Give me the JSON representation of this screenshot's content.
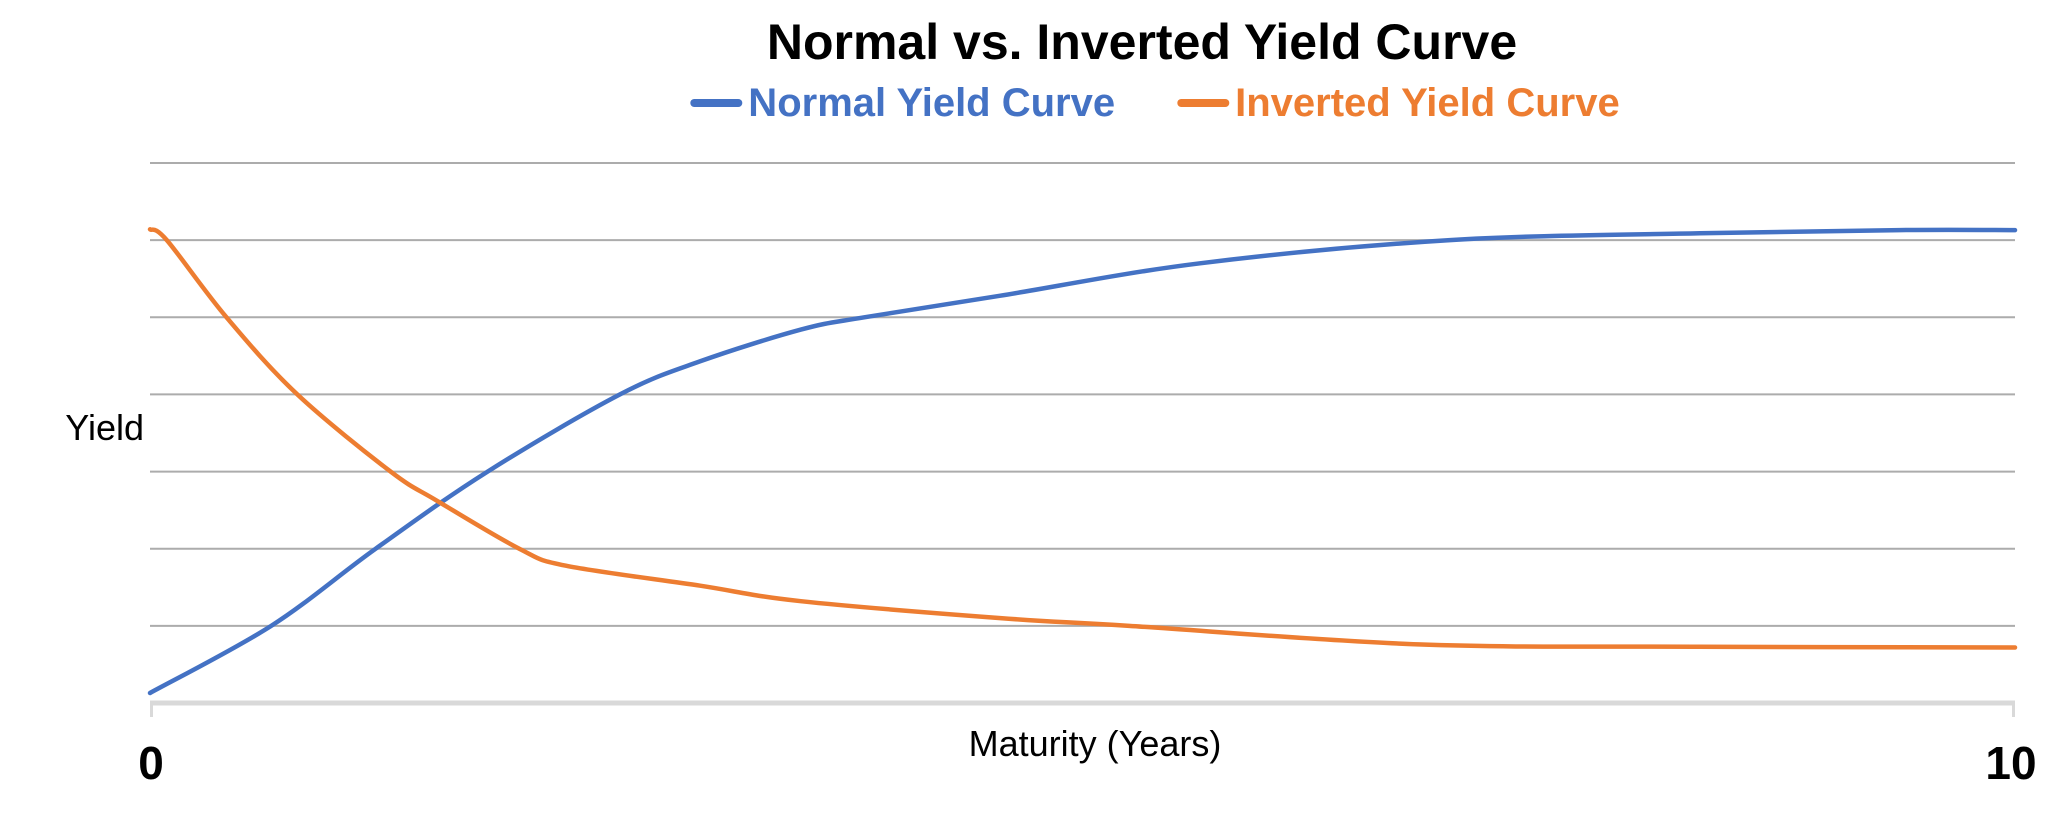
{
  "chart": {
    "title": "Normal vs. Inverted Yield Curve",
    "x_axis_label": "Maturity (Years)",
    "y_axis_label": "Yield",
    "x_tick_min": "0",
    "x_tick_max": "10",
    "colors": {
      "normal_line": "#4472C4",
      "inverted_line": "#ED7D31",
      "gridline": "#ACACAC",
      "axis_line": "#D9D9D9",
      "text": "#000000"
    }
  },
  "legend": [
    {
      "label": "Normal Yield Curve",
      "color": "#4472C4"
    },
    {
      "label": "Inverted Yield Curve",
      "color": "#ED7D31"
    }
  ],
  "chart_data": {
    "type": "line",
    "title": "Normal vs. Inverted Yield Curve",
    "xlabel": "Maturity (Years)",
    "ylabel": "Yield",
    "xlim": [
      0,
      10
    ],
    "x_ticks_labeled": [
      0,
      10
    ],
    "ylim": [
      0,
      7
    ],
    "y_tick_labels_shown": false,
    "y_units": "relative yield (7 unlabeled gridline intervals)",
    "grid": "horizontal",
    "legend_position": "top",
    "series": [
      {
        "name": "Normal Yield Curve",
        "color": "#4472C4",
        "points": [
          [
            0,
            0.13
          ],
          [
            0.65,
            1.0
          ],
          [
            1.21,
            2.0
          ],
          [
            1.81,
            3.0
          ],
          [
            2.52,
            4.0
          ],
          [
            2.95,
            4.43
          ],
          [
            3.49,
            4.84
          ],
          [
            3.83,
            5.0
          ],
          [
            4.56,
            5.28
          ],
          [
            5.63,
            5.7
          ],
          [
            6.97,
            6.0
          ],
          [
            8.31,
            6.09
          ],
          [
            9.38,
            6.13
          ],
          [
            10,
            6.13
          ]
        ]
      },
      {
        "name": "Inverted Yield Curve",
        "color": "#ED7D31",
        "points": [
          [
            0,
            6.14
          ],
          [
            0.09,
            6.0
          ],
          [
            0.41,
            5.0
          ],
          [
            0.79,
            4.0
          ],
          [
            1.29,
            3.0
          ],
          [
            1.54,
            2.62
          ],
          [
            1.98,
            2.0
          ],
          [
            2.23,
            1.78
          ],
          [
            2.95,
            1.52
          ],
          [
            3.49,
            1.32
          ],
          [
            4.56,
            1.1
          ],
          [
            5.25,
            1.0
          ],
          [
            6.8,
            0.76
          ],
          [
            8.3,
            0.73
          ],
          [
            10,
            0.72
          ]
        ]
      }
    ]
  }
}
